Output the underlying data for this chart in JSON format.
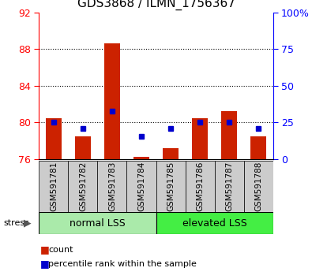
{
  "title": "GDS3868 / ILMN_1756367",
  "categories": [
    "GSM591781",
    "GSM591782",
    "GSM591783",
    "GSM591784",
    "GSM591785",
    "GSM591786",
    "GSM591787",
    "GSM591788"
  ],
  "red_values": [
    80.5,
    78.5,
    88.6,
    76.2,
    77.2,
    80.5,
    81.2,
    78.5
  ],
  "blue_values": [
    80.0,
    79.3,
    81.2,
    78.5,
    79.3,
    80.0,
    80.0,
    79.3
  ],
  "ylim_left": [
    76,
    92
  ],
  "yticks_left": [
    76,
    80,
    84,
    88,
    92
  ],
  "yticks_right_labels": [
    0,
    25,
    50,
    75,
    100
  ],
  "group1_label": "normal LSS",
  "group2_label": "elevated LSS",
  "stress_label": "stress",
  "legend_red": "count",
  "legend_blue": "percentile rank within the sample",
  "bar_color": "#cc2200",
  "dot_color": "#0000cc",
  "group1_color": "#aaeaaa",
  "group2_color": "#44ee44",
  "cell_bg": "#cccccc",
  "title_fontsize": 11,
  "axis_fontsize": 9,
  "label_fontsize": 7.5,
  "group_fontsize": 9,
  "legend_fontsize": 8,
  "bar_width": 0.55,
  "dot_size": 5
}
